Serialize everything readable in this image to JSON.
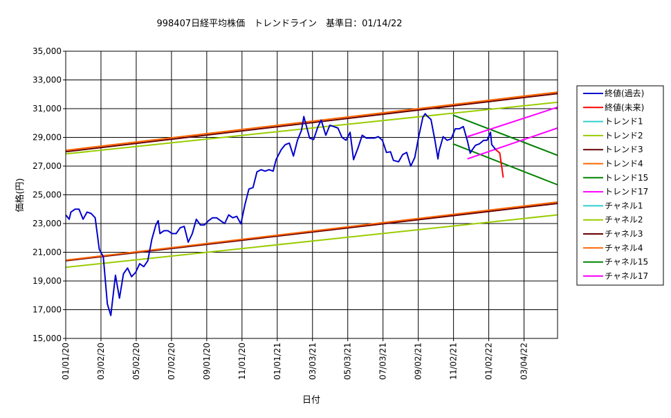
{
  "chart_data": {
    "type": "line",
    "title": "998407日経平均株価　トレンドライン　基準日：01/14/22",
    "xlabel": "日付",
    "ylabel": "価格(円)",
    "ylim": [
      15000,
      35000
    ],
    "yticks": [
      "15,000",
      "17,000",
      "19,000",
      "21,000",
      "23,000",
      "25,000",
      "27,000",
      "29,000",
      "31,000",
      "33,000",
      "35,000"
    ],
    "xrange": [
      "2020-01-01",
      "2022-05-01"
    ],
    "xtick_labels": [
      "01/01/20",
      "03/02/20",
      "05/02/20",
      "07/02/20",
      "09/01/20",
      "11/01/20",
      "01/01/21",
      "03/03/21",
      "05/03/21",
      "07/03/21",
      "09/02/21",
      "11/02/21",
      "01/02/22",
      "03/04/22"
    ],
    "grid": true,
    "legend_position": "right",
    "series": [
      {
        "name": "終値(過去)",
        "color": "#0000cc",
        "points": [
          [
            "2020-01-01",
            23600
          ],
          [
            "2020-01-07",
            23300
          ],
          [
            "2020-01-10",
            23800
          ],
          [
            "2020-01-17",
            24000
          ],
          [
            "2020-01-24",
            24000
          ],
          [
            "2020-01-31",
            23300
          ],
          [
            "2020-02-07",
            23800
          ],
          [
            "2020-02-14",
            23700
          ],
          [
            "2020-02-21",
            23400
          ],
          [
            "2020-02-28",
            21200
          ],
          [
            "2020-03-06",
            20700
          ],
          [
            "2020-03-13",
            17400
          ],
          [
            "2020-03-19",
            16600
          ],
          [
            "2020-03-27",
            19400
          ],
          [
            "2020-04-03",
            17800
          ],
          [
            "2020-04-10",
            19500
          ],
          [
            "2020-04-17",
            19900
          ],
          [
            "2020-04-24",
            19300
          ],
          [
            "2020-05-01",
            19600
          ],
          [
            "2020-05-08",
            20200
          ],
          [
            "2020-05-15",
            20000
          ],
          [
            "2020-05-22",
            20400
          ],
          [
            "2020-05-29",
            21900
          ],
          [
            "2020-06-05",
            22900
          ],
          [
            "2020-06-09",
            23200
          ],
          [
            "2020-06-12",
            22300
          ],
          [
            "2020-06-19",
            22500
          ],
          [
            "2020-06-26",
            22500
          ],
          [
            "2020-07-03",
            22300
          ],
          [
            "2020-07-10",
            22300
          ],
          [
            "2020-07-17",
            22700
          ],
          [
            "2020-07-24",
            22800
          ],
          [
            "2020-07-31",
            21700
          ],
          [
            "2020-08-07",
            22300
          ],
          [
            "2020-08-14",
            23300
          ],
          [
            "2020-08-21",
            22900
          ],
          [
            "2020-08-28",
            22900
          ],
          [
            "2020-09-04",
            23200
          ],
          [
            "2020-09-11",
            23400
          ],
          [
            "2020-09-18",
            23400
          ],
          [
            "2020-09-25",
            23200
          ],
          [
            "2020-10-02",
            23000
          ],
          [
            "2020-10-09",
            23600
          ],
          [
            "2020-10-16",
            23400
          ],
          [
            "2020-10-23",
            23500
          ],
          [
            "2020-10-30",
            22977
          ],
          [
            "2020-11-06",
            24300
          ],
          [
            "2020-11-13",
            25400
          ],
          [
            "2020-11-20",
            25500
          ],
          [
            "2020-11-27",
            26600
          ],
          [
            "2020-12-04",
            26750
          ],
          [
            "2020-12-11",
            26650
          ],
          [
            "2020-12-18",
            26750
          ],
          [
            "2020-12-25",
            26650
          ],
          [
            "2020-12-30",
            27450
          ],
          [
            "2021-01-08",
            28150
          ],
          [
            "2021-01-15",
            28500
          ],
          [
            "2021-01-22",
            28600
          ],
          [
            "2021-01-29",
            27700
          ],
          [
            "2021-02-05",
            28800
          ],
          [
            "2021-02-12",
            29500
          ],
          [
            "2021-02-16",
            30450
          ],
          [
            "2021-02-19",
            30000
          ],
          [
            "2021-02-26",
            28950
          ],
          [
            "2021-03-05",
            28850
          ],
          [
            "2021-03-12",
            29700
          ],
          [
            "2021-03-18",
            30200
          ],
          [
            "2021-03-26",
            29150
          ],
          [
            "2021-04-02",
            29850
          ],
          [
            "2021-04-09",
            29750
          ],
          [
            "2021-04-16",
            29650
          ],
          [
            "2021-04-23",
            29000
          ],
          [
            "2021-04-30",
            28800
          ],
          [
            "2021-05-07",
            29350
          ],
          [
            "2021-05-13",
            27450
          ],
          [
            "2021-05-21",
            28300
          ],
          [
            "2021-05-28",
            29150
          ],
          [
            "2021-06-04",
            28950
          ],
          [
            "2021-06-11",
            28950
          ],
          [
            "2021-06-18",
            28950
          ],
          [
            "2021-06-25",
            29050
          ],
          [
            "2021-07-02",
            28800
          ],
          [
            "2021-07-09",
            27950
          ],
          [
            "2021-07-16",
            28000
          ],
          [
            "2021-07-21",
            27400
          ],
          [
            "2021-07-30",
            27300
          ],
          [
            "2021-08-06",
            27800
          ],
          [
            "2021-08-13",
            27950
          ],
          [
            "2021-08-20",
            27000
          ],
          [
            "2021-08-27",
            27600
          ],
          [
            "2021-09-03",
            29100
          ],
          [
            "2021-09-10",
            30400
          ],
          [
            "2021-09-14",
            30650
          ],
          [
            "2021-09-17",
            30500
          ],
          [
            "2021-09-24",
            30250
          ],
          [
            "2021-10-01",
            28750
          ],
          [
            "2021-10-06",
            27500
          ],
          [
            "2021-10-08",
            28050
          ],
          [
            "2021-10-15",
            29050
          ],
          [
            "2021-10-22",
            28800
          ],
          [
            "2021-10-29",
            28900
          ],
          [
            "2021-11-05",
            29600
          ],
          [
            "2021-11-12",
            29600
          ],
          [
            "2021-11-19",
            29750
          ],
          [
            "2021-11-26",
            28750
          ],
          [
            "2021-12-01",
            27900
          ],
          [
            "2021-12-03",
            28050
          ],
          [
            "2021-12-10",
            28450
          ],
          [
            "2021-12-17",
            28550
          ],
          [
            "2021-12-24",
            28800
          ],
          [
            "2021-12-30",
            28800
          ],
          [
            "2022-01-05",
            29350
          ],
          [
            "2022-01-07",
            28500
          ],
          [
            "2022-01-14",
            28150
          ]
        ]
      },
      {
        "name": "終値(未来)",
        "color": "#ff0000",
        "points": [
          [
            "2022-01-14",
            28150
          ],
          [
            "2022-01-21",
            27900
          ],
          [
            "2022-01-27",
            26200
          ]
        ]
      },
      {
        "name": "トレンド1",
        "color": "#33cccc",
        "points": []
      },
      {
        "name": "トレンド2",
        "color": "#99cc00",
        "points": [
          [
            "2020-01-01",
            27850
          ],
          [
            "2022-05-01",
            31450
          ]
        ]
      },
      {
        "name": "トレンド3",
        "color": "#660000",
        "points": [
          [
            "2020-01-01",
            28000
          ],
          [
            "2022-05-01",
            32050
          ]
        ]
      },
      {
        "name": "トレンド4",
        "color": "#ff6600",
        "points": [
          [
            "2020-01-01",
            28100
          ],
          [
            "2022-05-01",
            32150
          ]
        ]
      },
      {
        "name": "トレンド15",
        "color": "#008000",
        "points": [
          [
            "2021-11-01",
            30550
          ],
          [
            "2022-05-01",
            27750
          ]
        ]
      },
      {
        "name": "トレンド17",
        "color": "#ff00ff",
        "points": [
          [
            "2021-11-26",
            29050
          ],
          [
            "2022-05-01",
            31100
          ]
        ]
      },
      {
        "name": "チャネル1",
        "color": "#33cccc",
        "points": []
      },
      {
        "name": "チャネル2",
        "color": "#99cc00",
        "points": [
          [
            "2020-01-01",
            19950
          ],
          [
            "2022-05-01",
            23600
          ]
        ]
      },
      {
        "name": "チャネル3",
        "color": "#660000",
        "points": [
          [
            "2020-01-01",
            20400
          ],
          [
            "2022-05-01",
            24400
          ]
        ]
      },
      {
        "name": "チャネル4",
        "color": "#ff6600",
        "points": [
          [
            "2020-01-01",
            20450
          ],
          [
            "2022-05-01",
            24500
          ]
        ]
      },
      {
        "name": "チャネル15",
        "color": "#008000",
        "points": [
          [
            "2021-11-01",
            28550
          ],
          [
            "2022-05-01",
            25700
          ]
        ]
      },
      {
        "name": "チャネル17",
        "color": "#ff00ff",
        "points": [
          [
            "2021-11-26",
            27500
          ],
          [
            "2022-05-01",
            29650
          ]
        ]
      }
    ]
  }
}
